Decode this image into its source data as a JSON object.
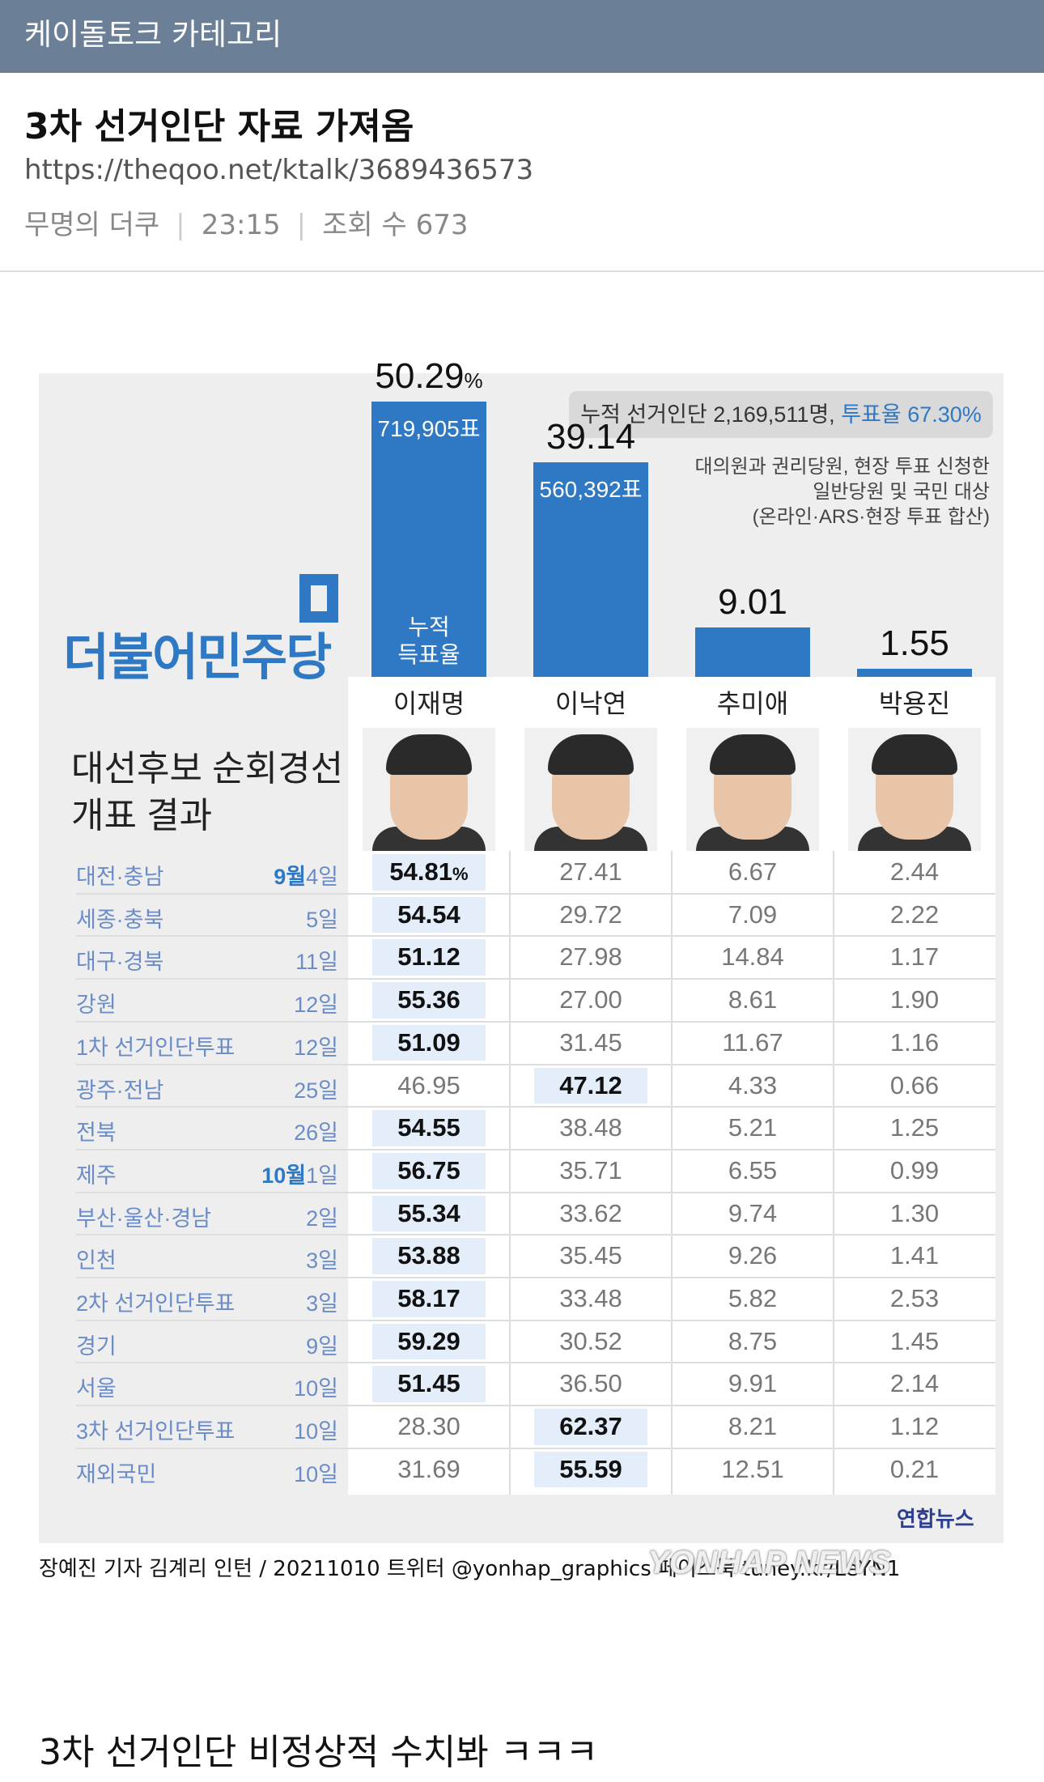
{
  "header": {
    "category": "케이돌토크 카테고리"
  },
  "post": {
    "title": "3차 선거인단 자료 가져옴",
    "url": "https://theqoo.net/ktalk/3689436573",
    "author": "무명의 더쿠",
    "time": "23:15",
    "views_label": "조회 수 673",
    "comment_text": "3차 선거인단 비정상적 수치봐 ㅋㅋㅋ"
  },
  "infographic": {
    "summary_prefix": "누적 선거인단 2,169,511명,",
    "summary_rate": "투표율 67.30%",
    "note_lines": [
      "대의원과 권리당원, 현장 투표 신청한",
      "일반당원 및 국민 대상",
      "(온라인·ARS·현장 투표 합산)"
    ],
    "party_name": "더불어민주당",
    "heading_lines": [
      "대선후보 순회경선",
      "개표 결과"
    ],
    "cumulative_label_lines": [
      "누적",
      "득표율"
    ],
    "yonhap_logo": "연합뉴스",
    "credit": "장예진 기자 김계리 인턴 / 20211010  트위터 @yonhap_graphics  페이스북 tuney.kr/LeYN1",
    "watermark": "YONHAP NEWS"
  },
  "chart_data": {
    "type": "bar",
    "categories": [
      "이재명",
      "이낙연",
      "추미애",
      "박용진"
    ],
    "values": [
      50.29,
      39.14,
      9.01,
      1.55
    ],
    "value_labels": [
      "50.29",
      "39.14",
      "9.01",
      "1.55"
    ],
    "unit_label": "%",
    "votes": [
      "719,905표",
      "560,392표",
      "",
      ""
    ],
    "table": {
      "rows": [
        {
          "region": "대전·충남",
          "month": "9월",
          "day": "4일",
          "values": [
            "54.81",
            "27.41",
            "6.67",
            "2.44"
          ],
          "winner": 0,
          "unit": "%"
        },
        {
          "region": "세종·충북",
          "month": "",
          "day": "5일",
          "values": [
            "54.54",
            "29.72",
            "7.09",
            "2.22"
          ],
          "winner": 0
        },
        {
          "region": "대구·경북",
          "month": "",
          "day": "11일",
          "values": [
            "51.12",
            "27.98",
            "14.84",
            "1.17"
          ],
          "winner": 0
        },
        {
          "region": "강원",
          "month": "",
          "day": "12일",
          "values": [
            "55.36",
            "27.00",
            "8.61",
            "1.90"
          ],
          "winner": 0
        },
        {
          "region": "1차 선거인단투표",
          "month": "",
          "day": "12일",
          "values": [
            "51.09",
            "31.45",
            "11.67",
            "1.16"
          ],
          "winner": 0
        },
        {
          "region": "광주·전남",
          "month": "",
          "day": "25일",
          "values": [
            "46.95",
            "47.12",
            "4.33",
            "0.66"
          ],
          "winner": 1
        },
        {
          "region": "전북",
          "month": "",
          "day": "26일",
          "values": [
            "54.55",
            "38.48",
            "5.21",
            "1.25"
          ],
          "winner": 0
        },
        {
          "region": "제주",
          "month": "10월",
          "day": "1일",
          "values": [
            "56.75",
            "35.71",
            "6.55",
            "0.99"
          ],
          "winner": 0
        },
        {
          "region": "부산·울산·경남",
          "month": "",
          "day": "2일",
          "values": [
            "55.34",
            "33.62",
            "9.74",
            "1.30"
          ],
          "winner": 0
        },
        {
          "region": "인천",
          "month": "",
          "day": "3일",
          "values": [
            "53.88",
            "35.45",
            "9.26",
            "1.41"
          ],
          "winner": 0
        },
        {
          "region": "2차 선거인단투표",
          "month": "",
          "day": "3일",
          "values": [
            "58.17",
            "33.48",
            "5.82",
            "2.53"
          ],
          "winner": 0
        },
        {
          "region": "경기",
          "month": "",
          "day": "9일",
          "values": [
            "59.29",
            "30.52",
            "8.75",
            "1.45"
          ],
          "winner": 0
        },
        {
          "region": "서울",
          "month": "",
          "day": "10일",
          "values": [
            "51.45",
            "36.50",
            "9.91",
            "2.14"
          ],
          "winner": 0
        },
        {
          "region": "3차 선거인단투표",
          "month": "",
          "day": "10일",
          "values": [
            "28.30",
            "62.37",
            "8.21",
            "1.12"
          ],
          "winner": 1
        },
        {
          "region": "재외국민",
          "month": "",
          "day": "10일",
          "values": [
            "31.69",
            "55.59",
            "12.51",
            "0.21"
          ],
          "winner": 1
        }
      ]
    }
  }
}
